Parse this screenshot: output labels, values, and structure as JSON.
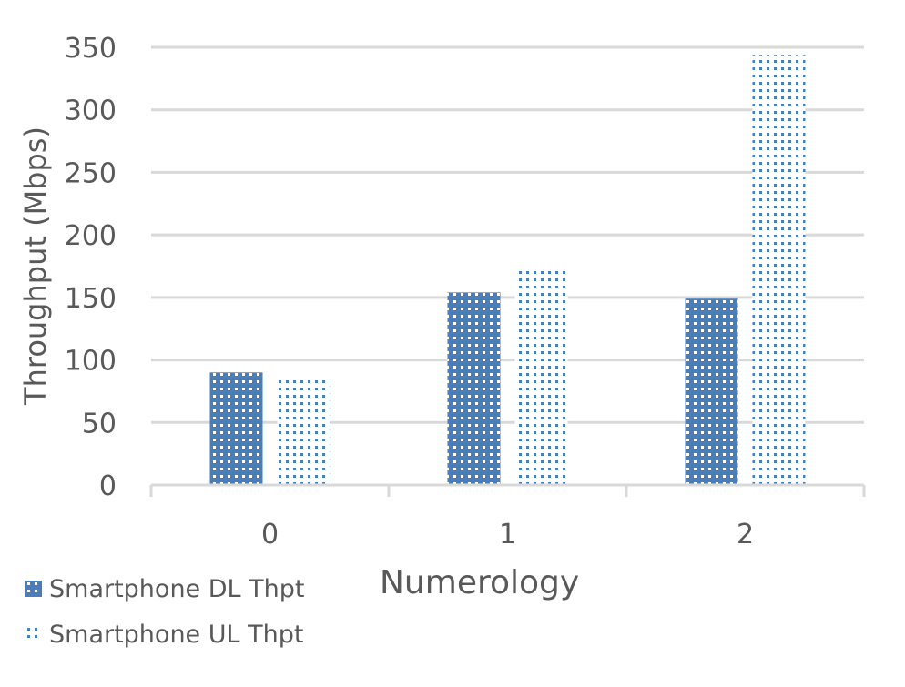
{
  "chart_data": {
    "type": "bar",
    "title": "",
    "xlabel": "Numerology",
    "ylabel": "Throughput (Mbps)",
    "categories": [
      "0",
      "1",
      "2"
    ],
    "series": [
      {
        "name": "Smartphone DL Thpt",
        "values": [
          90,
          154,
          149
        ],
        "pattern": "dense-grid"
      },
      {
        "name": "Smartphone UL Thpt",
        "values": [
          86,
          173,
          344
        ],
        "pattern": "sparse-dots"
      }
    ],
    "ylim": [
      0,
      350
    ],
    "yticks": [
      "0",
      "50",
      "100",
      "150",
      "200",
      "250",
      "300",
      "350"
    ],
    "grid": true,
    "legend_position": "bottom-left",
    "colors": {
      "bar": "#4a7ebb",
      "grid": "#d9d9d9",
      "text": "#595959"
    }
  },
  "legend": {
    "items": [
      {
        "label": "Smartphone DL Thpt"
      },
      {
        "label": "Smartphone UL Thpt"
      }
    ]
  },
  "axes": {
    "x_title": "Numerology",
    "y_title": "Throughput (Mbps)"
  }
}
